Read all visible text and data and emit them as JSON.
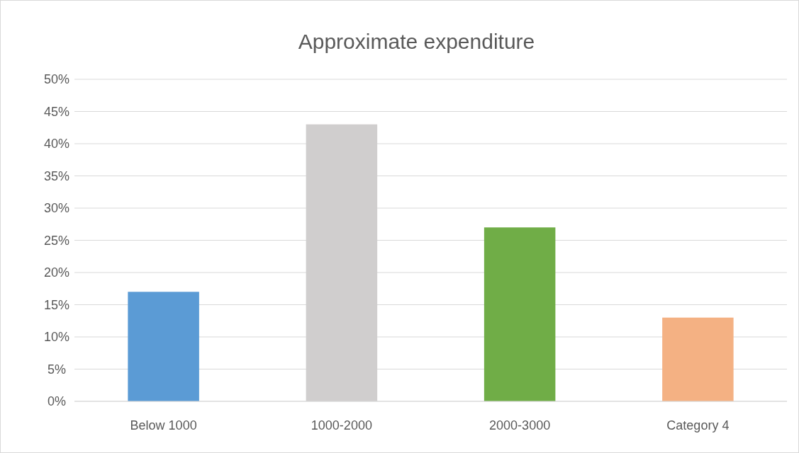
{
  "chart_data": {
    "type": "bar",
    "title": "Approximate expenditure",
    "categories": [
      "Below 1000",
      "1000-2000",
      "2000-3000",
      "Category 4"
    ],
    "values": [
      17,
      43,
      27,
      13
    ],
    "colors": [
      "#5b9bd5",
      "#d0cece",
      "#70ad47",
      "#f4b183"
    ],
    "ylim": [
      0,
      50
    ],
    "yticks": [
      {
        "value": 0,
        "label": "0%"
      },
      {
        "value": 5,
        "label": "5%"
      },
      {
        "value": 10,
        "label": "10%"
      },
      {
        "value": 15,
        "label": "15%"
      },
      {
        "value": 20,
        "label": "20%"
      },
      {
        "value": 25,
        "label": "25%"
      },
      {
        "value": 30,
        "label": "30%"
      },
      {
        "value": 35,
        "label": "35%"
      },
      {
        "value": 40,
        "label": "40%"
      },
      {
        "value": 45,
        "label": "45%"
      },
      {
        "value": 50,
        "label": "50%"
      }
    ],
    "grid": "y"
  }
}
